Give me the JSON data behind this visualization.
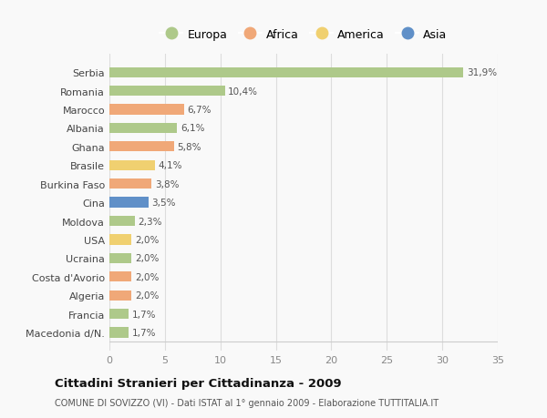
{
  "countries": [
    "Macedonia d/N.",
    "Francia",
    "Algeria",
    "Costa d'Avorio",
    "Ucraina",
    "USA",
    "Moldova",
    "Cina",
    "Burkina Faso",
    "Brasile",
    "Ghana",
    "Albania",
    "Marocco",
    "Romania",
    "Serbia"
  ],
  "values": [
    1.7,
    1.7,
    2.0,
    2.0,
    2.0,
    2.0,
    2.3,
    3.5,
    3.8,
    4.1,
    5.8,
    6.1,
    6.7,
    10.4,
    31.9
  ],
  "continents": [
    "Europa",
    "Europa",
    "Africa",
    "Africa",
    "Europa",
    "America",
    "Europa",
    "Asia",
    "Africa",
    "America",
    "Africa",
    "Europa",
    "Africa",
    "Europa",
    "Europa"
  ],
  "colors": {
    "Europa": "#aec98a",
    "Africa": "#f0a878",
    "America": "#f0d070",
    "Asia": "#6090c8"
  },
  "legend_order": [
    "Europa",
    "Africa",
    "America",
    "Asia"
  ],
  "title": "Cittadini Stranieri per Cittadinanza - 2009",
  "subtitle": "COMUNE DI SOVIZZO (VI) - Dati ISTAT al 1° gennaio 2009 - Elaborazione TUTTITALIA.IT",
  "xlim": [
    0,
    35
  ],
  "xticks": [
    0,
    5,
    10,
    15,
    20,
    25,
    30,
    35
  ],
  "bg_color": "#f9f9f9",
  "grid_color": "#dddddd",
  "bar_height": 0.55
}
